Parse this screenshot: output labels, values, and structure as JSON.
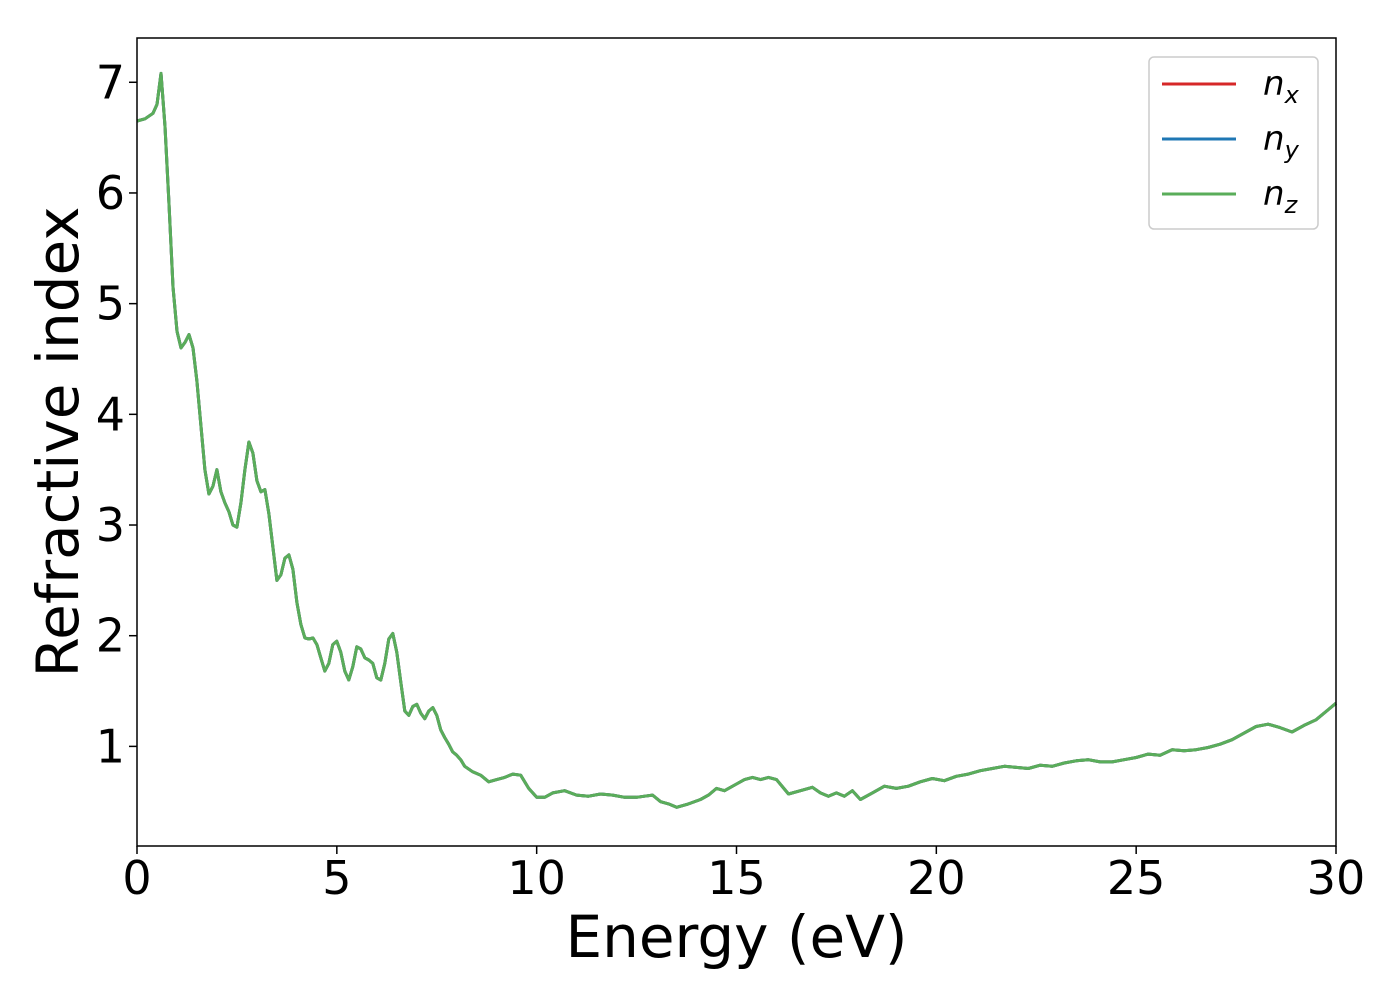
{
  "chart_data": {
    "type": "line",
    "title": "",
    "xlabel": "Energy (eV)",
    "ylabel": "Refractive index",
    "xlim": [
      0,
      30
    ],
    "ylim": [
      0.1,
      7.4
    ],
    "xticks": [
      0,
      5,
      10,
      15,
      20,
      25,
      30
    ],
    "yticks": [
      1,
      2,
      3,
      4,
      5,
      6,
      7
    ],
    "grid": false,
    "legend_position": "top-right",
    "x": [
      0,
      0.2,
      0.4,
      0.5,
      0.6,
      0.7,
      0.8,
      0.9,
      1.0,
      1.1,
      1.2,
      1.3,
      1.4,
      1.5,
      1.6,
      1.7,
      1.8,
      1.9,
      2.0,
      2.1,
      2.2,
      2.3,
      2.4,
      2.5,
      2.6,
      2.7,
      2.8,
      2.9,
      3.0,
      3.1,
      3.2,
      3.3,
      3.4,
      3.5,
      3.6,
      3.7,
      3.8,
      3.9,
      4.0,
      4.1,
      4.2,
      4.3,
      4.4,
      4.5,
      4.6,
      4.7,
      4.8,
      4.9,
      5.0,
      5.1,
      5.2,
      5.3,
      5.4,
      5.5,
      5.6,
      5.7,
      5.8,
      5.9,
      6.0,
      6.1,
      6.2,
      6.3,
      6.4,
      6.5,
      6.6,
      6.7,
      6.8,
      6.9,
      7.0,
      7.1,
      7.2,
      7.3,
      7.4,
      7.5,
      7.6,
      7.7,
      7.8,
      7.9,
      8.0,
      8.1,
      8.2,
      8.4,
      8.6,
      8.8,
      9.0,
      9.2,
      9.4,
      9.6,
      9.8,
      10.0,
      10.2,
      10.4,
      10.7,
      11.0,
      11.3,
      11.6,
      11.9,
      12.2,
      12.5,
      12.7,
      12.9,
      13.1,
      13.3,
      13.5,
      13.8,
      14.1,
      14.3,
      14.5,
      14.7,
      15.0,
      15.2,
      15.4,
      15.6,
      15.8,
      16.0,
      16.3,
      16.6,
      16.9,
      17.1,
      17.3,
      17.5,
      17.7,
      17.9,
      18.1,
      18.4,
      18.7,
      19.0,
      19.3,
      19.6,
      19.9,
      20.2,
      20.5,
      20.8,
      21.1,
      21.4,
      21.7,
      22.0,
      22.3,
      22.6,
      22.9,
      23.2,
      23.5,
      23.8,
      24.1,
      24.4,
      24.7,
      25.0,
      25.3,
      25.6,
      25.9,
      26.2,
      26.5,
      26.8,
      27.1,
      27.4,
      27.7,
      28.0,
      28.3,
      28.6,
      28.9,
      29.2,
      29.5,
      29.8,
      30.0
    ],
    "series": [
      {
        "name": "n_x",
        "color": "#d62728",
        "values": [
          6.65,
          6.67,
          6.72,
          6.8,
          7.08,
          6.6,
          5.9,
          5.15,
          4.75,
          4.6,
          4.65,
          4.72,
          4.6,
          4.3,
          3.9,
          3.5,
          3.28,
          3.35,
          3.5,
          3.3,
          3.2,
          3.12,
          3.0,
          2.98,
          3.2,
          3.5,
          3.75,
          3.65,
          3.4,
          3.3,
          3.32,
          3.1,
          2.8,
          2.5,
          2.55,
          2.7,
          2.73,
          2.6,
          2.3,
          2.1,
          1.98,
          1.97,
          1.98,
          1.92,
          1.8,
          1.68,
          1.75,
          1.92,
          1.95,
          1.85,
          1.68,
          1.6,
          1.72,
          1.9,
          1.88,
          1.8,
          1.78,
          1.75,
          1.62,
          1.6,
          1.75,
          1.97,
          2.02,
          1.85,
          1.58,
          1.32,
          1.28,
          1.36,
          1.38,
          1.3,
          1.25,
          1.32,
          1.35,
          1.28,
          1.15,
          1.08,
          1.02,
          0.95,
          0.92,
          0.88,
          0.82,
          0.77,
          0.74,
          0.68,
          0.7,
          0.72,
          0.75,
          0.74,
          0.62,
          0.54,
          0.54,
          0.58,
          0.6,
          0.56,
          0.55,
          0.57,
          0.56,
          0.54,
          0.54,
          0.55,
          0.56,
          0.5,
          0.48,
          0.45,
          0.48,
          0.52,
          0.56,
          0.62,
          0.6,
          0.66,
          0.7,
          0.72,
          0.7,
          0.72,
          0.7,
          0.57,
          0.6,
          0.63,
          0.58,
          0.55,
          0.58,
          0.55,
          0.6,
          0.52,
          0.58,
          0.64,
          0.62,
          0.64,
          0.68,
          0.71,
          0.69,
          0.73,
          0.75,
          0.78,
          0.8,
          0.82,
          0.81,
          0.8,
          0.83,
          0.82,
          0.85,
          0.87,
          0.88,
          0.86,
          0.86,
          0.88,
          0.9,
          0.93,
          0.92,
          0.97,
          0.96,
          0.97,
          0.99,
          1.02,
          1.06,
          1.12,
          1.18,
          1.2,
          1.17,
          1.13,
          1.19,
          1.24,
          1.33,
          1.39
        ]
      },
      {
        "name": "n_y",
        "color": "#1f77b4",
        "values": [
          6.65,
          6.67,
          6.72,
          6.8,
          7.08,
          6.6,
          5.9,
          5.15,
          4.75,
          4.6,
          4.65,
          4.72,
          4.6,
          4.3,
          3.9,
          3.5,
          3.28,
          3.35,
          3.5,
          3.3,
          3.2,
          3.12,
          3.0,
          2.98,
          3.2,
          3.5,
          3.75,
          3.65,
          3.4,
          3.3,
          3.32,
          3.1,
          2.8,
          2.5,
          2.55,
          2.7,
          2.73,
          2.6,
          2.3,
          2.1,
          1.98,
          1.97,
          1.98,
          1.92,
          1.8,
          1.68,
          1.75,
          1.92,
          1.95,
          1.85,
          1.68,
          1.6,
          1.72,
          1.9,
          1.88,
          1.8,
          1.78,
          1.75,
          1.62,
          1.6,
          1.75,
          1.97,
          2.02,
          1.85,
          1.58,
          1.32,
          1.28,
          1.36,
          1.38,
          1.3,
          1.25,
          1.32,
          1.35,
          1.28,
          1.15,
          1.08,
          1.02,
          0.95,
          0.92,
          0.88,
          0.82,
          0.77,
          0.74,
          0.68,
          0.7,
          0.72,
          0.75,
          0.74,
          0.62,
          0.54,
          0.54,
          0.58,
          0.6,
          0.56,
          0.55,
          0.57,
          0.56,
          0.54,
          0.54,
          0.55,
          0.56,
          0.5,
          0.48,
          0.45,
          0.48,
          0.52,
          0.56,
          0.62,
          0.6,
          0.66,
          0.7,
          0.72,
          0.7,
          0.72,
          0.7,
          0.57,
          0.6,
          0.63,
          0.58,
          0.55,
          0.58,
          0.55,
          0.6,
          0.52,
          0.58,
          0.64,
          0.62,
          0.64,
          0.68,
          0.71,
          0.69,
          0.73,
          0.75,
          0.78,
          0.8,
          0.82,
          0.81,
          0.8,
          0.83,
          0.82,
          0.85,
          0.87,
          0.88,
          0.86,
          0.86,
          0.88,
          0.9,
          0.93,
          0.92,
          0.97,
          0.96,
          0.97,
          0.99,
          1.02,
          1.06,
          1.12,
          1.18,
          1.2,
          1.17,
          1.13,
          1.19,
          1.24,
          1.33,
          1.39
        ]
      },
      {
        "name": "n_z",
        "color": "#5aad5a",
        "values": [
          6.65,
          6.67,
          6.72,
          6.8,
          7.08,
          6.6,
          5.9,
          5.15,
          4.75,
          4.6,
          4.65,
          4.72,
          4.6,
          4.3,
          3.9,
          3.5,
          3.28,
          3.35,
          3.5,
          3.3,
          3.2,
          3.12,
          3.0,
          2.98,
          3.2,
          3.5,
          3.75,
          3.65,
          3.4,
          3.3,
          3.32,
          3.1,
          2.8,
          2.5,
          2.55,
          2.7,
          2.73,
          2.6,
          2.3,
          2.1,
          1.98,
          1.97,
          1.98,
          1.92,
          1.8,
          1.68,
          1.75,
          1.92,
          1.95,
          1.85,
          1.68,
          1.6,
          1.72,
          1.9,
          1.88,
          1.8,
          1.78,
          1.75,
          1.62,
          1.6,
          1.75,
          1.97,
          2.02,
          1.85,
          1.58,
          1.32,
          1.28,
          1.36,
          1.38,
          1.3,
          1.25,
          1.32,
          1.35,
          1.28,
          1.15,
          1.08,
          1.02,
          0.95,
          0.92,
          0.88,
          0.82,
          0.77,
          0.74,
          0.68,
          0.7,
          0.72,
          0.75,
          0.74,
          0.62,
          0.54,
          0.54,
          0.58,
          0.6,
          0.56,
          0.55,
          0.57,
          0.56,
          0.54,
          0.54,
          0.55,
          0.56,
          0.5,
          0.48,
          0.45,
          0.48,
          0.52,
          0.56,
          0.62,
          0.6,
          0.66,
          0.7,
          0.72,
          0.7,
          0.72,
          0.7,
          0.57,
          0.6,
          0.63,
          0.58,
          0.55,
          0.58,
          0.55,
          0.6,
          0.52,
          0.58,
          0.64,
          0.62,
          0.64,
          0.68,
          0.71,
          0.69,
          0.73,
          0.75,
          0.78,
          0.8,
          0.82,
          0.81,
          0.8,
          0.83,
          0.82,
          0.85,
          0.87,
          0.88,
          0.86,
          0.86,
          0.88,
          0.9,
          0.93,
          0.92,
          0.97,
          0.96,
          0.97,
          0.99,
          1.02,
          1.06,
          1.12,
          1.18,
          1.2,
          1.17,
          1.13,
          1.19,
          1.24,
          1.33,
          1.39
        ]
      }
    ],
    "legend": [
      {
        "symbol": "n",
        "subscript": "x",
        "color": "#d62728"
      },
      {
        "symbol": "n",
        "subscript": "y",
        "color": "#1f77b4"
      },
      {
        "symbol": "n",
        "subscript": "z",
        "color": "#5aad5a"
      }
    ]
  }
}
